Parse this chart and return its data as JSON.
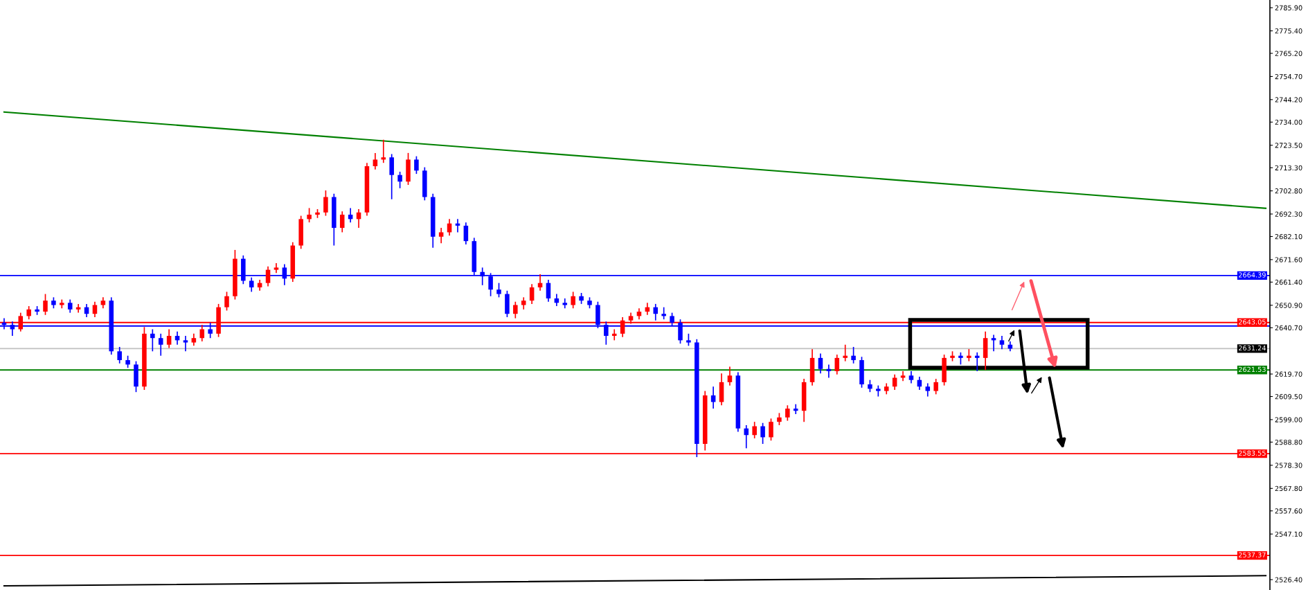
{
  "chart_data": {
    "type": "candlestick",
    "categories": [
      null,
      null,
      null,
      null,
      null,
      null,
      null,
      null,
      null,
      null,
      null,
      null,
      null,
      null,
      null,
      null,
      null,
      null,
      null,
      null,
      null,
      null,
      null,
      null,
      null,
      null,
      null,
      null,
      null,
      null,
      null,
      null,
      null,
      null,
      null,
      null,
      null,
      null,
      null,
      null,
      null,
      null,
      null,
      null,
      null,
      null,
      null,
      null,
      null,
      null,
      null,
      null,
      null,
      null,
      null,
      null,
      null,
      null,
      null,
      null,
      null,
      null,
      null,
      null,
      null,
      null,
      null,
      null,
      null,
      null,
      null,
      null,
      null,
      null,
      null,
      null,
      null,
      null,
      null,
      null,
      null,
      null,
      null,
      null,
      null,
      null,
      null,
      null,
      null,
      null,
      null,
      null,
      null,
      null,
      null,
      null,
      null,
      null,
      null,
      null,
      null,
      null,
      null,
      null,
      null,
      null,
      null,
      null,
      null,
      null,
      null,
      null,
      null,
      null,
      null,
      null,
      null,
      null,
      null,
      null,
      null,
      null,
      null,
      null,
      null,
      null,
      null,
      null,
      null,
      null,
      null,
      null,
      null,
      null,
      null,
      null,
      null,
      null,
      null,
      null,
      null,
      null,
      null,
      null,
      null,
      null,
      null,
      null,
      null,
      null,
      null,
      null,
      null,
      null
    ],
    "ohlc": [
      [
        2643,
        2645,
        2640,
        2642
      ],
      [
        2642,
        2643.5,
        2637,
        2640
      ],
      [
        2640,
        2647.5,
        2639,
        2646
      ],
      [
        2646,
        2650.5,
        2644.5,
        2649
      ],
      [
        2649,
        2650.5,
        2646.5,
        2648
      ],
      [
        2648,
        2656,
        2646.5,
        2653
      ],
      [
        2653,
        2654.5,
        2649.5,
        2651
      ],
      [
        2651,
        2653.5,
        2649.5,
        2652
      ],
      [
        2652,
        2653.5,
        2647.5,
        2649
      ],
      [
        2649,
        2651.5,
        2647.5,
        2650
      ],
      [
        2650,
        2651.5,
        2645.5,
        2647
      ],
      [
        2647,
        2652.5,
        2645.5,
        2651
      ],
      [
        2651,
        2654.5,
        2649.5,
        2653
      ],
      [
        2653,
        2654.5,
        2628.5,
        2630
      ],
      [
        2630,
        2632,
        2624.5,
        2626
      ],
      [
        2626,
        2628,
        2622.5,
        2624
      ],
      [
        2624,
        2625.5,
        2611.5,
        2614
      ],
      [
        2614,
        2641,
        2612.5,
        2638
      ],
      [
        2638,
        2640,
        2630,
        2636
      ],
      [
        2636,
        2638,
        2628,
        2633
      ],
      [
        2633,
        2640,
        2631.5,
        2637
      ],
      [
        2637,
        2639,
        2633,
        2635
      ],
      [
        2635,
        2637,
        2630,
        2634
      ],
      [
        2634,
        2638,
        2632.5,
        2636
      ],
      [
        2636,
        2642,
        2634.5,
        2640
      ],
      [
        2640,
        2643,
        2636,
        2638
      ],
      [
        2638,
        2651.5,
        2636.5,
        2650
      ],
      [
        2650,
        2657,
        2648.5,
        2655
      ],
      [
        2655,
        2676,
        2653.5,
        2672
      ],
      [
        2672,
        2673.5,
        2660.5,
        2662
      ],
      [
        2662,
        2663.5,
        2657,
        2659
      ],
      [
        2659,
        2662.5,
        2657.5,
        2661
      ],
      [
        2661,
        2668.5,
        2659.5,
        2667
      ],
      [
        2667,
        2670,
        2665.5,
        2668
      ],
      [
        2668,
        2669.5,
        2660,
        2663
      ],
      [
        2663,
        2679.5,
        2661.5,
        2678
      ],
      [
        2678,
        2691.5,
        2676.5,
        2690
      ],
      [
        2690,
        2695,
        2688.5,
        2692
      ],
      [
        2692,
        2694.5,
        2690.5,
        2693
      ],
      [
        2693,
        2703,
        2691.5,
        2700
      ],
      [
        2700,
        2701.5,
        2678,
        2686
      ],
      [
        2686,
        2693.5,
        2684,
        2692
      ],
      [
        2692,
        2695,
        2688.5,
        2690
      ],
      [
        2690,
        2694.5,
        2686,
        2693
      ],
      [
        2693,
        2715.5,
        2691.5,
        2714
      ],
      [
        2714,
        2720,
        2712.5,
        2717
      ],
      [
        2717,
        2726,
        2715.5,
        2718
      ],
      [
        2718,
        2719.5,
        2699,
        2710
      ],
      [
        2710,
        2711.5,
        2704,
        2707
      ],
      [
        2707,
        2720,
        2705.5,
        2717
      ],
      [
        2717,
        2718.5,
        2710.5,
        2712
      ],
      [
        2712,
        2713.5,
        2698.5,
        2700
      ],
      [
        2700,
        2701.5,
        2677,
        2682
      ],
      [
        2682,
        2686,
        2679,
        2684
      ],
      [
        2684,
        2690,
        2682.5,
        2688
      ],
      [
        2688,
        2690,
        2684,
        2687
      ],
      [
        2687,
        2688.5,
        2678.5,
        2680
      ],
      [
        2680,
        2681.5,
        2664.5,
        2666
      ],
      [
        2666,
        2668,
        2660,
        2664
      ],
      [
        2664,
        2665.5,
        2655,
        2658
      ],
      [
        2658,
        2661,
        2654.5,
        2656
      ],
      [
        2656,
        2657.5,
        2645.5,
        2647
      ],
      [
        2647,
        2652.5,
        2645,
        2651
      ],
      [
        2651,
        2654.5,
        2649,
        2653
      ],
      [
        2653,
        2660.5,
        2651.5,
        2659
      ],
      [
        2659,
        2665,
        2657.5,
        2661
      ],
      [
        2661,
        2662.5,
        2652.5,
        2654
      ],
      [
        2654,
        2656,
        2650.5,
        2652
      ],
      [
        2652,
        2654,
        2649.5,
        2651
      ],
      [
        2651,
        2657,
        2649.5,
        2655
      ],
      [
        2655,
        2656.5,
        2651.5,
        2653
      ],
      [
        2653,
        2654.5,
        2649.5,
        2651
      ],
      [
        2651,
        2652.5,
        2640.5,
        2642
      ],
      [
        2642,
        2643.5,
        2633,
        2637
      ],
      [
        2637,
        2640,
        2635,
        2638
      ],
      [
        2638,
        2645.5,
        2636.5,
        2644
      ],
      [
        2644,
        2647.5,
        2642.5,
        2646
      ],
      [
        2646,
        2649.5,
        2644.5,
        2648
      ],
      [
        2648,
        2652,
        2646.5,
        2650
      ],
      [
        2650,
        2651.5,
        2644,
        2647
      ],
      [
        2647,
        2650,
        2644.5,
        2646
      ],
      [
        2646,
        2647.5,
        2641.5,
        2643
      ],
      [
        2643,
        2644.5,
        2633.5,
        2635
      ],
      [
        2635,
        2638,
        2632.5,
        2634
      ],
      [
        2634,
        2635.5,
        2582,
        2588
      ],
      [
        2588,
        2612,
        2585,
        2610
      ],
      [
        2610,
        2614,
        2604,
        2607
      ],
      [
        2607,
        2620,
        2605.5,
        2616
      ],
      [
        2616,
        2623,
        2614.5,
        2619
      ],
      [
        2619,
        2620.5,
        2593.5,
        2595
      ],
      [
        2595,
        2596.5,
        2586,
        2592
      ],
      [
        2592,
        2598,
        2590.5,
        2596
      ],
      [
        2596,
        2597.5,
        2588,
        2591
      ],
      [
        2591,
        2599.5,
        2589.5,
        2598
      ],
      [
        2598,
        2602,
        2596.5,
        2600
      ],
      [
        2600,
        2605.5,
        2598.5,
        2604
      ],
      [
        2604,
        2606,
        2601.5,
        2603
      ],
      [
        2603,
        2617.5,
        2598,
        2616
      ],
      [
        2616,
        2631,
        2614.5,
        2627
      ],
      [
        2627,
        2629,
        2620,
        2622
      ],
      [
        2622,
        2624,
        2618,
        2621
      ],
      [
        2621,
        2628.5,
        2619.5,
        2627
      ],
      [
        2627,
        2633,
        2625.5,
        2628
      ],
      [
        2628,
        2632,
        2624.5,
        2626
      ],
      [
        2626,
        2627.5,
        2613.5,
        2615
      ],
      [
        2615,
        2617,
        2611.5,
        2613
      ],
      [
        2613,
        2614.5,
        2609.5,
        2612
      ],
      [
        2612,
        2615.5,
        2610.5,
        2614
      ],
      [
        2614,
        2619.5,
        2612.5,
        2618
      ],
      [
        2618,
        2621,
        2616.5,
        2619
      ],
      [
        2619,
        2621,
        2615.5,
        2617
      ],
      [
        2617,
        2618.5,
        2612.5,
        2614
      ],
      [
        2614,
        2615.5,
        2609.5,
        2612
      ],
      [
        2612,
        2617.5,
        2610.5,
        2616
      ],
      [
        2616,
        2628.5,
        2614.5,
        2627
      ],
      [
        2627,
        2630,
        2625.5,
        2628
      ],
      [
        2628,
        2629.5,
        2624,
        2627
      ],
      [
        2627,
        2631,
        2625.5,
        2628
      ],
      [
        2628,
        2629.5,
        2621,
        2627
      ],
      [
        2627,
        2639,
        2621.5,
        2636
      ],
      [
        2636,
        2637.5,
        2630,
        2635
      ],
      [
        2635,
        2637,
        2631,
        2633
      ],
      [
        2633,
        2634.5,
        2630,
        2631.2
      ],
      null,
      null,
      null,
      null,
      null,
      null,
      null,
      null,
      null,
      null,
      null,
      null,
      null,
      null,
      null,
      null,
      null,
      null,
      null,
      null,
      null,
      null,
      null,
      null,
      null,
      null,
      null,
      null,
      null,
      null,
      null
    ],
    "colors": [
      "#0000ff",
      "#0000ff",
      "#ff0000",
      "#ff0000",
      "#0000ff",
      "#ff0000",
      "#0000ff",
      "#ff0000",
      "#0000ff",
      "#ff0000",
      "#0000ff",
      "#ff0000",
      "#ff0000",
      "#0000ff",
      "#0000ff",
      "#0000ff",
      "#0000ff",
      "#ff0000",
      "#0000ff",
      "#0000ff",
      "#ff0000",
      "#0000ff",
      "#0000ff",
      "#ff0000",
      "#ff0000",
      "#0000ff",
      "#ff0000",
      "#ff0000",
      "#ff0000",
      "#0000ff",
      "#0000ff",
      "#ff0000",
      "#ff0000",
      "#ff0000",
      "#0000ff",
      "#ff0000",
      "#ff0000",
      "#ff0000",
      "#ff0000",
      "#ff0000",
      "#0000ff",
      "#ff0000",
      "#0000ff",
      "#ff0000",
      "#ff0000",
      "#ff0000",
      "#ff0000",
      "#0000ff",
      "#0000ff",
      "#ff0000",
      "#0000ff",
      "#0000ff",
      "#0000ff",
      "#ff0000",
      "#ff0000",
      "#0000ff",
      "#0000ff",
      "#0000ff",
      "#0000ff",
      "#0000ff",
      "#0000ff",
      "#0000ff",
      "#ff0000",
      "#ff0000",
      "#ff0000",
      "#ff0000",
      "#0000ff",
      "#0000ff",
      "#0000ff",
      "#ff0000",
      "#0000ff",
      "#0000ff",
      "#0000ff",
      "#0000ff",
      "#ff0000",
      "#ff0000",
      "#ff0000",
      "#ff0000",
      "#ff0000",
      "#0000ff",
      "#0000ff",
      "#0000ff",
      "#0000ff",
      "#0000ff",
      "#0000ff",
      "#ff0000",
      "#0000ff",
      "#ff0000",
      "#ff0000",
      "#0000ff",
      "#0000ff",
      "#ff0000",
      "#0000ff",
      "#ff0000",
      "#ff0000",
      "#ff0000",
      "#0000ff",
      "#ff0000",
      "#ff0000",
      "#0000ff",
      "#0000ff",
      "#ff0000",
      "#ff0000",
      "#0000ff",
      "#0000ff",
      "#0000ff",
      "#0000ff",
      "#ff0000",
      "#ff0000",
      "#ff0000",
      "#0000ff",
      "#0000ff",
      "#0000ff",
      "#ff0000",
      "#ff0000",
      "#ff0000",
      "#0000ff",
      "#ff0000",
      "#0000ff",
      "#ff0000",
      "#0000ff",
      "#0000ff",
      "#0000ff",
      null,
      null,
      null,
      null,
      null,
      null,
      null,
      null,
      null,
      null,
      null,
      null,
      null,
      null,
      null,
      null,
      null,
      null,
      null,
      null,
      null,
      null,
      null,
      null,
      null,
      null,
      null,
      null,
      null,
      null,
      null
    ],
    "series": [
      {
        "type": "line",
        "color": "#008000",
        "values": [
          2738.6,
          null,
          null,
          null,
          null,
          null,
          null,
          null,
          null,
          null,
          null,
          null,
          null,
          null,
          null,
          null,
          null,
          null,
          null,
          null,
          null,
          null,
          null,
          null,
          null,
          null,
          null,
          null,
          null,
          null,
          null,
          null,
          null,
          null,
          null,
          null,
          null,
          null,
          null,
          null,
          null,
          null,
          null,
          null,
          null,
          null,
          null,
          null,
          null,
          null,
          null,
          null,
          null,
          null,
          null,
          null,
          null,
          null,
          null,
          null,
          null,
          null,
          null,
          null,
          null,
          null,
          null,
          null,
          null,
          null,
          null,
          null,
          null,
          null,
          null,
          null,
          null,
          null,
          null,
          null,
          null,
          null,
          null,
          null,
          null,
          null,
          null,
          null,
          null,
          null,
          null,
          null,
          null,
          null,
          null,
          null,
          null,
          null,
          null,
          null,
          null,
          null,
          null,
          null,
          null,
          null,
          null,
          null,
          null,
          null,
          null,
          null,
          null,
          null,
          null,
          null,
          null,
          null,
          null,
          null,
          null,
          null,
          null,
          null,
          null,
          null,
          null,
          null,
          null,
          null,
          null,
          null,
          null,
          null,
          null,
          null,
          null,
          null,
          null,
          null,
          null,
          null,
          null,
          null,
          null,
          null,
          null,
          null,
          null,
          null,
          null,
          null,
          null,
          2694.9
        ]
      },
      {
        "type": "line",
        "color": "#000000",
        "values": [
          2523.6,
          null,
          null,
          null,
          null,
          null,
          null,
          null,
          null,
          null,
          null,
          null,
          null,
          null,
          null,
          null,
          null,
          null,
          null,
          null,
          null,
          null,
          null,
          null,
          null,
          null,
          null,
          null,
          null,
          null,
          null,
          null,
          null,
          null,
          null,
          null,
          null,
          null,
          null,
          null,
          null,
          null,
          null,
          null,
          null,
          null,
          null,
          null,
          null,
          null,
          null,
          null,
          null,
          null,
          null,
          null,
          null,
          null,
          null,
          null,
          null,
          null,
          null,
          null,
          null,
          null,
          null,
          null,
          null,
          null,
          null,
          null,
          null,
          null,
          null,
          null,
          null,
          null,
          null,
          null,
          null,
          null,
          null,
          null,
          null,
          null,
          null,
          null,
          null,
          null,
          null,
          null,
          null,
          null,
          null,
          null,
          null,
          null,
          null,
          null,
          null,
          null,
          null,
          null,
          null,
          null,
          null,
          null,
          null,
          null,
          null,
          null,
          null,
          null,
          null,
          null,
          null,
          null,
          null,
          null,
          null,
          null,
          null,
          null,
          null,
          null,
          null,
          null,
          null,
          null,
          null,
          null,
          null,
          null,
          null,
          null,
          null,
          null,
          null,
          null,
          null,
          null,
          null,
          null,
          null,
          null,
          null,
          null,
          null,
          null,
          null,
          null,
          null,
          2528.2
        ]
      }
    ],
    "ylim": [
      2521.7,
      2789.4
    ],
    "yticks": [
      {
        "value": 2785.9,
        "label": "2785.90"
      },
      {
        "value": 2775.4,
        "label": "2775.40"
      },
      {
        "value": 2765.2,
        "label": "2765.20"
      },
      {
        "value": 2754.7,
        "label": "2754.70"
      },
      {
        "value": 2744.2,
        "label": "2744.20"
      },
      {
        "value": 2734.0,
        "label": "2734.00"
      },
      {
        "value": 2723.5,
        "label": "2723.50"
      },
      {
        "value": 2713.3,
        "label": "2713.30"
      },
      {
        "value": 2702.8,
        "label": "2702.80"
      },
      {
        "value": 2692.3,
        "label": "2692.30"
      },
      {
        "value": 2682.1,
        "label": "2682.10"
      },
      {
        "value": 2671.6,
        "label": "2671.60"
      },
      {
        "value": 2661.4,
        "label": "2661.40"
      },
      {
        "value": 2650.9,
        "label": "2650.90"
      },
      {
        "value": 2640.7,
        "label": "2640.70"
      },
      {
        "value": 2619.7,
        "label": "2619.70"
      },
      {
        "value": 2609.5,
        "label": "2609.50"
      },
      {
        "value": 2599.0,
        "label": "2599.00"
      },
      {
        "value": 2588.8,
        "label": "2588.80"
      },
      {
        "value": 2578.3,
        "label": "2578.30"
      },
      {
        "value": 2567.8,
        "label": "2567.80"
      },
      {
        "value": 2557.6,
        "label": "2557.60"
      },
      {
        "value": 2547.1,
        "label": "2547.10"
      },
      {
        "value": 2526.4,
        "label": "2526.40"
      }
    ],
    "ref_lines": [
      {
        "axis": "y",
        "value": 2664.39,
        "label": "2664.39",
        "color": "#0000ff"
      },
      {
        "axis": "y",
        "value": 2643.05,
        "label": "2643.05",
        "color": "#ff0000"
      },
      {
        "axis": "y",
        "value": 2641.5,
        "color": "#0000ff"
      },
      {
        "axis": "y",
        "value": 2631.24,
        "label": "2631.24",
        "color": "#c0c0c0"
      },
      {
        "axis": "y",
        "value": 2621.53,
        "label": "2621.53",
        "color": "#008000"
      },
      {
        "axis": "y",
        "value": 2583.55,
        "label": "2583.55",
        "color": "#ff0000"
      },
      {
        "axis": "y",
        "value": 2537.37,
        "label": "2537.37",
        "color": "#ff0000"
      }
    ],
    "grid": false,
    "legend": false
  }
}
